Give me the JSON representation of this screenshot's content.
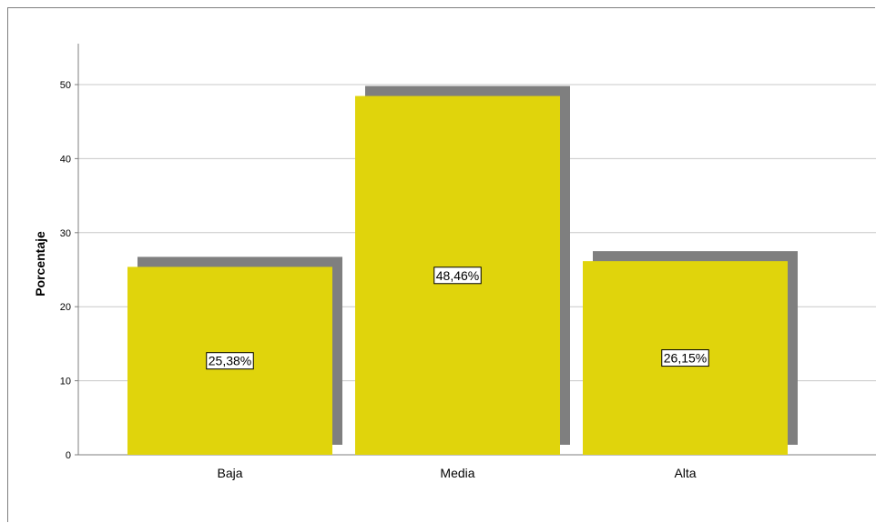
{
  "chart_data": {
    "type": "bar",
    "categories": [
      "Baja",
      "Media",
      "Alta"
    ],
    "values": [
      25.38,
      48.46,
      26.15
    ],
    "data_labels": [
      "25,38%",
      "48,46%",
      "26,15%"
    ],
    "title": "",
    "xlabel": "",
    "ylabel": "Porcentaje",
    "ylim": [
      0,
      55
    ],
    "yticks": [
      0,
      10,
      20,
      30,
      40,
      50
    ],
    "ytick_labels": [
      "0",
      "10",
      "20",
      "30",
      "40",
      "50"
    ],
    "grid": "horizontal",
    "bar_style": "3d-shadow",
    "colors": {
      "bar": "#e0d40c",
      "bar_shadow": "#7f7f7f",
      "grid": "#c8c8c8",
      "axis": "#7f7f7f"
    }
  }
}
